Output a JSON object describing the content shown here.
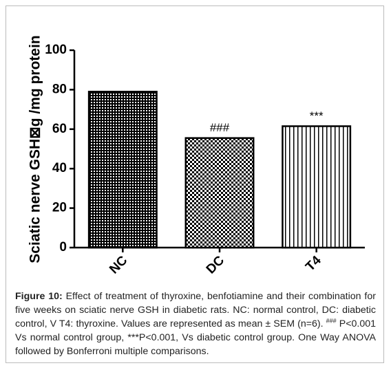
{
  "chart_data": {
    "type": "bar",
    "y_label": "Sciatic nerve GSH⊠g /mg protein",
    "categories": [
      "NC",
      "DC",
      "T4"
    ],
    "values": [
      79,
      55.5,
      61.5
    ],
    "bar_labels": [
      null,
      "###",
      "***"
    ],
    "color": "#000000",
    "ylim": [
      0,
      100
    ],
    "yticks": [
      0,
      20,
      40,
      60,
      80,
      100
    ],
    "grid": false
  },
  "caption": {
    "label": "Figure 10:",
    "text": "Effect of treatment of thyroxine, benfotiamine and their combination for five weeks on sciatic nerve GSH in diabetic rats. NC: normal control, DC: diabetic control, V T4: thyroxine. Values are represented as mean ± SEM (n=6).",
    "sup": "###",
    "text2": " P<0.001 Vs normal control group, ***P<0.001, Vs diabetic control group. One Way ANOVA followed by Bonferroni multiple comparisons."
  }
}
